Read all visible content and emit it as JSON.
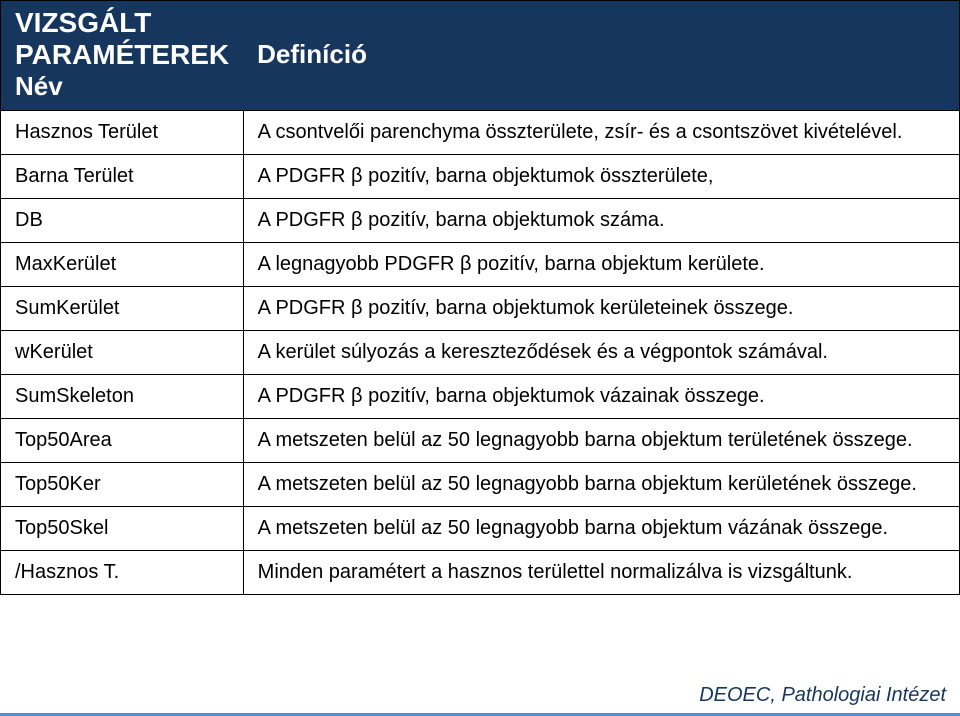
{
  "colors": {
    "header_bg": "#17365d",
    "header_fg": "#ffffff",
    "border": "#000000",
    "text": "#000000",
    "footer": "#17365d",
    "accent_stripe": "#558ed5"
  },
  "header": {
    "title": "VIZSGÁLT PARAMÉTEREK",
    "col_name": "Név",
    "col_def": "Definíció"
  },
  "rows": [
    {
      "name": "Hasznos Terület",
      "def": "A csontvelői parenchyma összterülete, zsír- és a csontszövet kivételével."
    },
    {
      "name": "Barna Terület",
      "def": "A PDGFR β pozitív, barna objektumok összterülete,"
    },
    {
      "name": "DB",
      "def": "A PDGFR β pozitív, barna objektumok száma."
    },
    {
      "name": "MaxKerület",
      "def": "A legnagyobb PDGFR β pozitív, barna objektum kerülete."
    },
    {
      "name": "SumKerület",
      "def": "A PDGFR β pozitív, barna objektumok kerületeinek összege."
    },
    {
      "name": "wKerület",
      "def": "A kerület súlyozás a kereszteződések és a végpontok számával."
    },
    {
      "name": "SumSkeleton",
      "def": "A PDGFR β pozitív, barna objektumok vázainak összege."
    },
    {
      "name": "Top50Area",
      "def": "A metszeten belül az 50 legnagyobb barna objektum területének összege."
    },
    {
      "name": "Top50Ker",
      "def": "A metszeten belül az 50 legnagyobb barna objektum kerületének összege."
    },
    {
      "name": "Top50Skel",
      "def": "A metszeten belül az 50 legnagyobb barna objektum vázának összege."
    },
    {
      "name": "/Hasznos T.",
      "def": "Minden paramétert a hasznos területtel normalizálva is vizsgáltunk."
    }
  ],
  "footer": "DEOEC, Pathologiai Intézet"
}
